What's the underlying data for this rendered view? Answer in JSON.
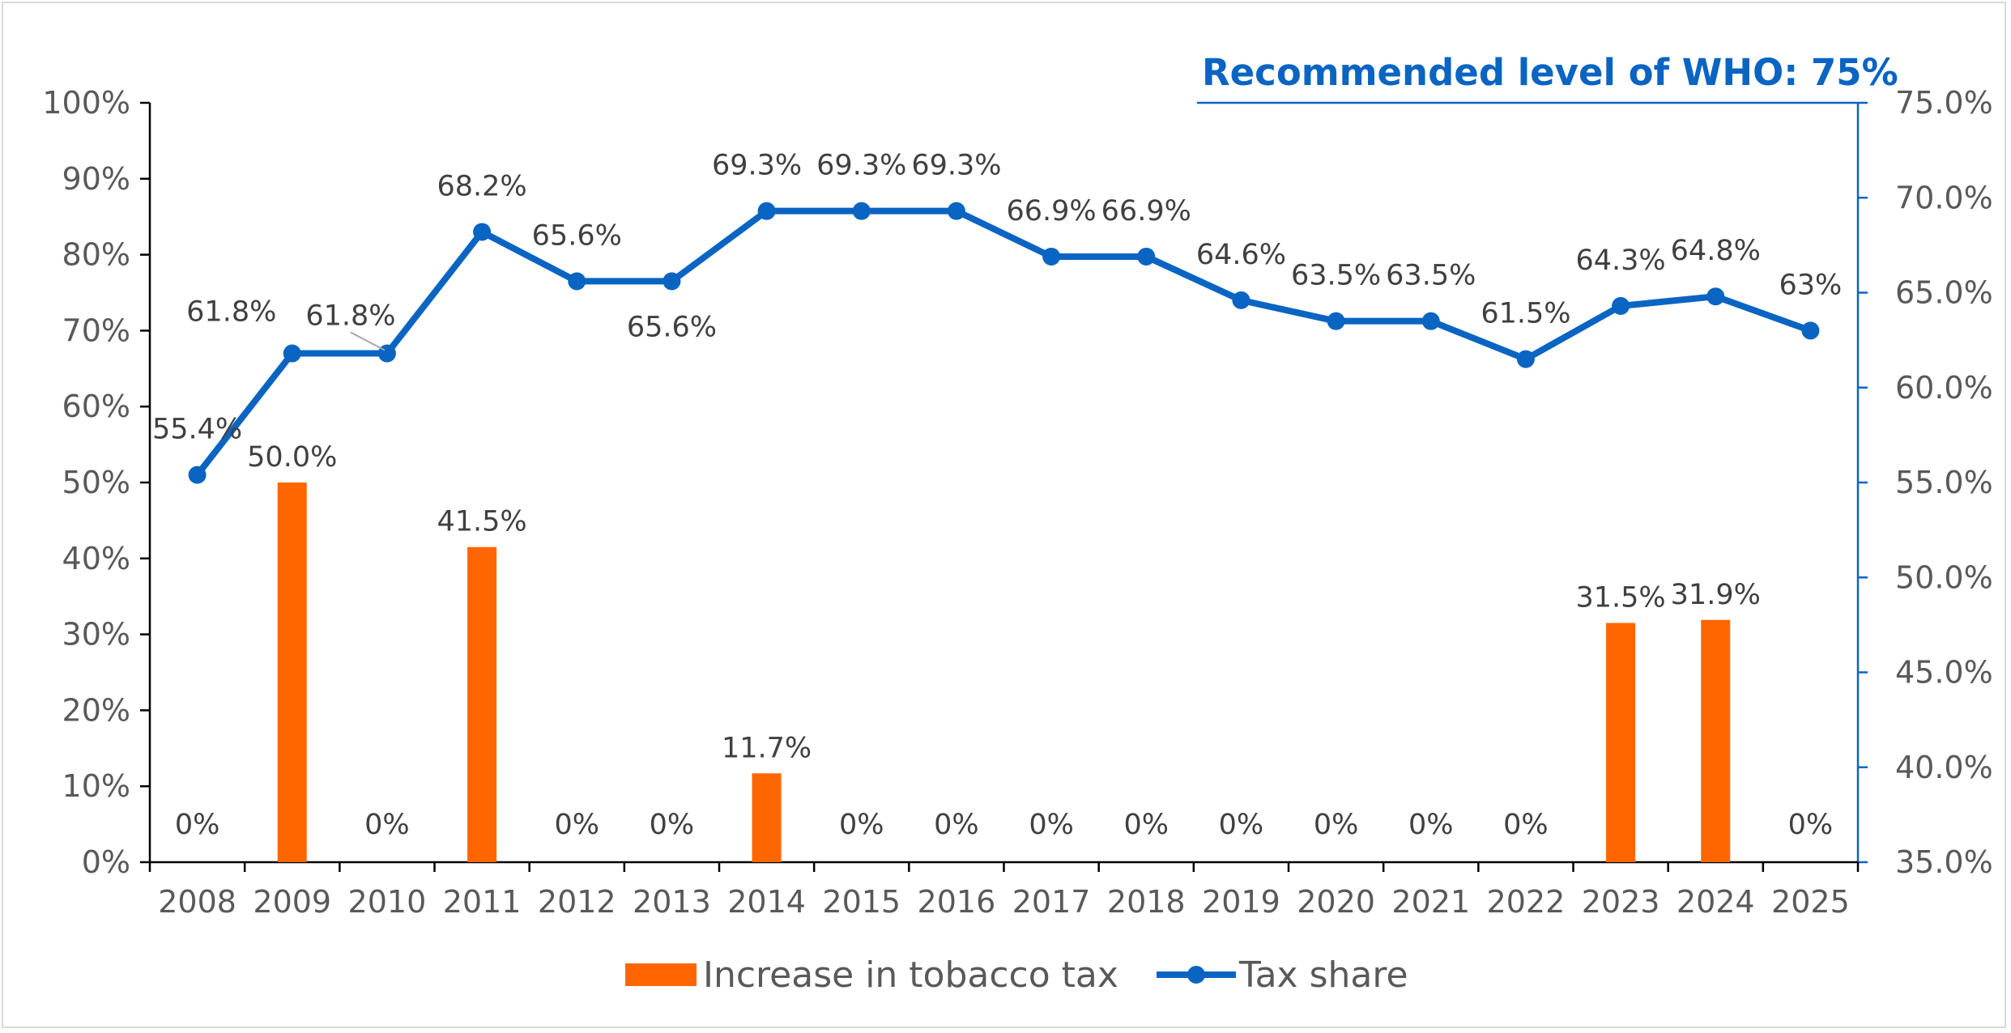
{
  "chart_data": {
    "type": "bar+line",
    "categories": [
      "2008",
      "2009",
      "2010",
      "2011",
      "2012",
      "2013",
      "2014",
      "2015",
      "2016",
      "2017",
      "2018",
      "2019",
      "2020",
      "2021",
      "2022",
      "2023",
      "2024",
      "2025"
    ],
    "series": [
      {
        "name": "Increase in tobacco tax",
        "type": "bar",
        "axis": "left",
        "color": "#ff6600",
        "values": [
          0,
          50.0,
          0,
          41.5,
          0,
          0,
          11.7,
          0,
          0,
          0,
          0,
          0,
          0,
          0,
          0,
          31.5,
          31.9,
          0
        ],
        "labels": [
          "0%",
          "50.0%",
          "0%",
          "41.5%",
          "0%",
          "0%",
          "11.7%",
          "0%",
          "0%",
          "0%",
          "0%",
          "0%",
          "0%",
          "0%",
          "0%",
          "31.5%",
          "31.9%",
          "0%"
        ]
      },
      {
        "name": "Tax share",
        "type": "line",
        "axis": "right",
        "color": "#0a64c2",
        "values": [
          55.4,
          61.8,
          61.8,
          68.2,
          65.6,
          65.6,
          69.3,
          69.3,
          69.3,
          66.9,
          66.9,
          64.6,
          63.5,
          63.5,
          61.5,
          64.3,
          64.8,
          63.0
        ],
        "labels": [
          "55.4%",
          "61.8%",
          "61.8%",
          "68.2%",
          "65.6%",
          "65.6%",
          "69.3%",
          "69.3%",
          "69.3%",
          "66.9%",
          "66.9%",
          "64.6%",
          "63.5%",
          "63.5%",
          "61.5%",
          "64.3%",
          "64.8%",
          "63%"
        ]
      }
    ],
    "y_left": {
      "range": [
        0,
        100
      ],
      "ticks": [
        0,
        10,
        20,
        30,
        40,
        50,
        60,
        70,
        80,
        90,
        100
      ],
      "tick_labels": [
        "0%",
        "10%",
        "20%",
        "30%",
        "40%",
        "50%",
        "60%",
        "70%",
        "80%",
        "90%",
        "100%"
      ]
    },
    "y_right": {
      "range": [
        35,
        75
      ],
      "ticks": [
        35,
        40,
        45,
        50,
        55,
        60,
        65,
        70,
        75
      ],
      "tick_labels": [
        "35.0%",
        "40.0%",
        "45.0%",
        "50.0%",
        "55.0%",
        "60.0%",
        "65.0%",
        "70.0%",
        "75.0%"
      ],
      "color": "#0a64c2"
    },
    "annotation": {
      "text": "Recommended level of WHO: 75%",
      "value": 75,
      "axis": "right",
      "color": "#0a64c2"
    },
    "title": "",
    "xlabel": "",
    "ylabel": "",
    "grid": false,
    "legend": "bottom-center"
  }
}
